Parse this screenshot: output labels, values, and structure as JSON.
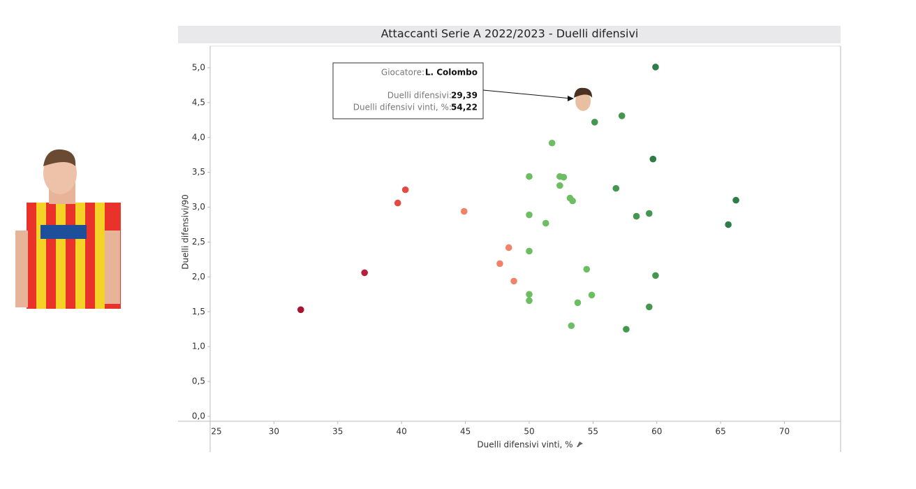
{
  "chart_data": {
    "type": "scatter",
    "title": "Attaccanti Serie A 2022/2023 - Duelli difensivi",
    "x_label": "Duelli difensivi vinti, %",
    "y_label": "Duelli difensivi/90",
    "xlim": [
      25,
      74.4
    ],
    "ylim": [
      -0.07,
      5.31
    ],
    "xticks": [
      25,
      30,
      35,
      40,
      45,
      50,
      55,
      60,
      65,
      70
    ],
    "yticks": [
      {
        "value": 0,
        "label": "0,0"
      },
      {
        "value": 0.5,
        "label": "0,5"
      },
      {
        "value": 1,
        "label": "1,0"
      },
      {
        "value": 1.5,
        "label": "1,5"
      },
      {
        "value": 2,
        "label": "2,0"
      },
      {
        "value": 2.5,
        "label": "2,5"
      },
      {
        "value": 3,
        "label": "3,0"
      },
      {
        "value": 3.5,
        "label": "3,5"
      },
      {
        "value": 4,
        "label": "4,0"
      },
      {
        "value": 4.5,
        "label": "4,5"
      },
      {
        "value": 5,
        "label": "5,0"
      }
    ],
    "series": [
      {
        "x": [
          59.9,
          57.26,
          55.13,
          51.79,
          59.7,
          50.0,
          52.4,
          52.7,
          52.4,
          56.8,
          40.3,
          53.2,
          53.4,
          39.7,
          66.2,
          44.9,
          59.4,
          50.0,
          58.4,
          51.3,
          65.6,
          48.4,
          50.0,
          47.7,
          54.5,
          37.1,
          59.9,
          48.8,
          50.0,
          54.9,
          50.0,
          53.8,
          59.4,
          32.1,
          53.3,
          57.6
        ],
        "values": [
          5.01,
          4.31,
          4.22,
          3.92,
          3.69,
          3.44,
          3.44,
          3.43,
          3.31,
          3.27,
          3.25,
          3.13,
          3.09,
          3.06,
          3.1,
          2.94,
          2.91,
          2.89,
          2.87,
          2.77,
          2.75,
          2.42,
          2.37,
          2.19,
          2.11,
          2.06,
          2.02,
          1.94,
          1.75,
          1.74,
          1.66,
          1.63,
          1.57,
          1.53,
          1.3,
          1.25
        ],
        "colors": [
          "#2e7d46",
          "#45964f",
          "#45964f",
          "#6dbd62",
          "#2e7d46",
          "#6dbd62",
          "#6dbd62",
          "#6dbd62",
          "#6dbd62",
          "#45964f",
          "#e34a42",
          "#6dbd62",
          "#6dbd62",
          "#e34a42",
          "#2e7d46",
          "#f08268",
          "#45964f",
          "#6dbd62",
          "#45964f",
          "#6dbd62",
          "#2e7d46",
          "#f08268",
          "#6dbd62",
          "#f08268",
          "#6dbd62",
          "#b51f3a",
          "#45964f",
          "#f08268",
          "#6dbd62",
          "#6dbd62",
          "#6dbd62",
          "#6dbd62",
          "#45964f",
          "#a8142e",
          "#6dbd62",
          "#45964f"
        ]
      }
    ],
    "highlight": {
      "x": 54.22,
      "y": 4.54
    },
    "tooltip": {
      "player_label": "Giocatore:",
      "player": "L. Colombo",
      "duels_label": "Duelli difensivi:",
      "duels": "29,39",
      "won_label": "Duelli difensivi vinti, %:",
      "won": "54,22"
    }
  }
}
